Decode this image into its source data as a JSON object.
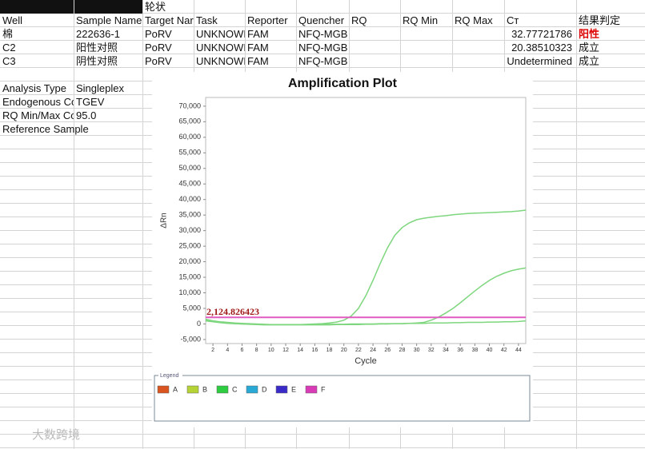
{
  "sheet": {
    "header_note": "轮状",
    "header": [
      "Well",
      "Sample Name",
      "Target Nar",
      "Task",
      "Reporter",
      "Quencher",
      "RQ",
      "RQ Min",
      "RQ Max",
      "Cт",
      "结果判定"
    ],
    "rows": [
      [
        "棉",
        "222636-1",
        "PoRV",
        "UNKNOWI",
        "FAM",
        "NFQ-MGB",
        null,
        null,
        null,
        "32.77721786",
        "阳性"
      ],
      [
        "C2",
        "阳性对照",
        "PoRV",
        "UNKNOWI",
        "FAM",
        "NFQ-MGB",
        null,
        null,
        null,
        "20.38510323",
        "成立"
      ],
      [
        "C3",
        "阴性对照",
        "PoRV",
        "UNKNOWI",
        "FAM",
        "NFQ-MGB",
        null,
        null,
        null,
        "Undetermined",
        "成立"
      ]
    ],
    "settings": [
      [
        "Analysis Type",
        "Singleplex"
      ],
      [
        "Endogenous Co",
        "TGEV"
      ],
      [
        "RQ Min/Max Co",
        "95.0"
      ],
      [
        "Reference Sample",
        null
      ]
    ],
    "watermark": "大数跨境"
  },
  "chart_data": {
    "type": "line",
    "title": "Amplification Plot",
    "x_label": "Cycle",
    "y_label": "ΔRn",
    "x": [
      1,
      2,
      3,
      4,
      5,
      6,
      7,
      8,
      9,
      10,
      11,
      12,
      13,
      14,
      15,
      16,
      17,
      18,
      19,
      20,
      21,
      22,
      23,
      24,
      25,
      26,
      27,
      28,
      29,
      30,
      31,
      32,
      33,
      34,
      35,
      36,
      37,
      38,
      39,
      40,
      41,
      42,
      43,
      44,
      45
    ],
    "series": [
      {
        "color": "#7ed67e",
        "values": [
          1500,
          1000,
          700,
          500,
          300,
          200,
          100,
          0,
          -100,
          -200,
          -200,
          -200,
          -200,
          -200,
          -100,
          0,
          100,
          300,
          600,
          1200,
          2500,
          5000,
          9000,
          14000,
          19500,
          24500,
          28500,
          31000,
          32500,
          33500,
          34000,
          34300,
          34600,
          34800,
          35100,
          35300,
          35500,
          35600,
          35700,
          35800,
          35900,
          36000,
          36100,
          36300,
          36600
        ]
      },
      {
        "color": "#7ed67e",
        "values": [
          1200,
          800,
          500,
          300,
          100,
          0,
          -100,
          -200,
          -300,
          -300,
          -300,
          -300,
          -300,
          -300,
          -300,
          -300,
          -300,
          -300,
          -200,
          -200,
          -200,
          -200,
          -100,
          -100,
          0,
          0,
          100,
          100,
          200,
          300,
          500,
          1200,
          2200,
          3500,
          5000,
          6800,
          8700,
          10600,
          12400,
          14000,
          15300,
          16300,
          17100,
          17600,
          18000
        ]
      },
      {
        "color": "#7ed67e",
        "values": [
          1000,
          700,
          400,
          200,
          100,
          0,
          -100,
          -100,
          -200,
          -200,
          -200,
          -200,
          -200,
          -200,
          -200,
          -200,
          -100,
          -100,
          -100,
          -100,
          0,
          0,
          0,
          0,
          100,
          100,
          100,
          100,
          200,
          200,
          200,
          300,
          300,
          300,
          400,
          400,
          500,
          500,
          500,
          600,
          600,
          700,
          700,
          800,
          1000
        ]
      }
    ],
    "threshold": {
      "value": 2124.826423,
      "label": "2,124.826423",
      "color": "#e05cc0"
    },
    "xlim": [
      1,
      45
    ],
    "xticks": [
      2,
      4,
      6,
      8,
      10,
      12,
      14,
      16,
      18,
      20,
      22,
      24,
      26,
      28,
      30,
      32,
      34,
      36,
      38,
      40,
      42,
      44
    ],
    "ylim": [
      -6300,
      72800
    ],
    "yticks": [
      {
        "value": -5000,
        "label": "-5,000"
      },
      0,
      {
        "value": 5000,
        "label": "5,000"
      },
      {
        "value": 10000,
        "label": "10,000"
      },
      {
        "value": 15000,
        "label": "15,000"
      },
      {
        "value": 20000,
        "label": "20,000"
      },
      {
        "value": 25000,
        "label": "25,000"
      },
      {
        "value": 30000,
        "label": "30,000"
      },
      {
        "value": 35000,
        "label": "35,000"
      },
      {
        "value": 40000,
        "label": "40,000"
      },
      {
        "value": 45000,
        "label": "45,000"
      },
      {
        "value": 50000,
        "label": "50,000"
      },
      {
        "value": 55000,
        "label": "55,000"
      },
      {
        "value": 60000,
        "label": "60,000"
      },
      {
        "value": 65000,
        "label": "65,000"
      },
      {
        "value": 70000,
        "label": "70,000"
      }
    ],
    "legend_title": "Legend",
    "legend": [
      {
        "name": "A",
        "color": "#d9541e"
      },
      {
        "name": "B",
        "color": "#b5d334"
      },
      {
        "name": "C",
        "color": "#2ecc40"
      },
      {
        "name": "D",
        "color": "#29a9d6"
      },
      {
        "name": "E",
        "color": "#3a2bc9"
      },
      {
        "name": "F",
        "color": "#d83bb5"
      }
    ]
  }
}
